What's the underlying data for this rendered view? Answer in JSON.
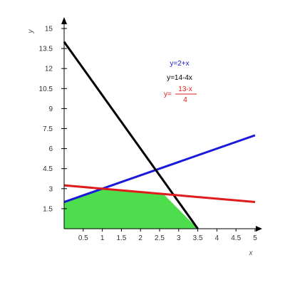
{
  "chart_data": {
    "type": "line",
    "title": "",
    "xlabel": "x",
    "ylabel": "y",
    "xlim": [
      0,
      5
    ],
    "ylim": [
      0,
      15
    ],
    "x_ticks": [
      0.5,
      1,
      1.5,
      2,
      2.5,
      3,
      3.5,
      4,
      4.5,
      5
    ],
    "y_ticks": [
      1.5,
      3,
      4.5,
      6,
      7.5,
      9,
      10.5,
      12,
      13.5,
      15
    ],
    "grid": false,
    "legend_position": "top-center",
    "series": [
      {
        "name": "y=2+x",
        "color": "#1a1adb",
        "points": [
          [
            0,
            2
          ],
          [
            5,
            7
          ]
        ]
      },
      {
        "name": "y=14-4x",
        "color": "#000000",
        "points": [
          [
            0,
            14
          ],
          [
            3.5,
            0
          ]
        ]
      },
      {
        "name": "y=(13-x)/4",
        "numerator": "13-x",
        "denominator": "4",
        "color": "#e01b1b",
        "points": [
          [
            0,
            3.25
          ],
          [
            5,
            2
          ]
        ]
      }
    ],
    "feasible_region": {
      "color": "#4ddd4d",
      "vertices": [
        [
          0,
          0
        ],
        [
          0,
          2
        ],
        [
          1,
          3
        ],
        [
          2.6,
          2.6
        ],
        [
          3.5,
          0
        ]
      ]
    }
  }
}
